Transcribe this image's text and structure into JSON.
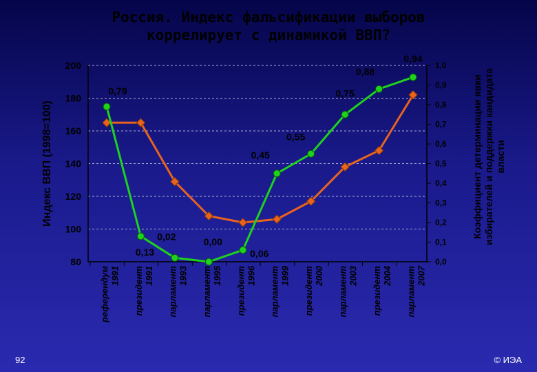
{
  "title": "Россия. Индекс фальсификации выборов\nкоррелирует с динамикой ВВП?",
  "page_number": "92",
  "copyright": "© ИЭА",
  "chart_data": {
    "type": "line",
    "categories": [
      "референдум 1991",
      "президент 1991",
      "парламент 1993",
      "парламент 1995",
      "президент 1996",
      "парламент 1999",
      "президент 2000",
      "парламент 2003",
      "президент 2004",
      "парламент 2007"
    ],
    "category_lines": [
      [
        "референдум",
        "1991"
      ],
      [
        "президент",
        "1991"
      ],
      [
        "парламент",
        "1993"
      ],
      [
        "парламент",
        "1995"
      ],
      [
        "президент",
        "1996"
      ],
      [
        "парламент",
        "1999"
      ],
      [
        "президент",
        "2000"
      ],
      [
        "парламент",
        "2003"
      ],
      [
        "президент",
        "2004"
      ],
      [
        "парламент",
        "2007"
      ]
    ],
    "ylabel": "Индекс ВВП (1998=100)",
    "ylim": [
      80,
      200
    ],
    "yticks": [
      "80",
      "100",
      "120",
      "140",
      "160",
      "180",
      "200"
    ],
    "y2label_lines": [
      "Коэффициент детерминации явки",
      "избирателей и поддержки кандидата",
      "власти"
    ],
    "y2lim": [
      0,
      1
    ],
    "y2ticks": [
      "0,0",
      "0,1",
      "0,2",
      "0,3",
      "0,4",
      "0,5",
      "0,6",
      "0,7",
      "0,8",
      "0,9",
      "1,0"
    ],
    "grid": true,
    "series": [
      {
        "axis": "left",
        "color": "#e8641e",
        "marker": "diamond",
        "values": [
          165,
          165,
          129,
          108,
          104,
          106,
          117,
          138,
          148,
          182
        ]
      },
      {
        "axis": "right",
        "color": "#1ed21e",
        "marker": "circle",
        "values": [
          0.79,
          0.13,
          0.02,
          0.0,
          0.06,
          0.45,
          0.55,
          0.75,
          0.88,
          0.94
        ],
        "labels": [
          "0,79",
          "0,13",
          "0,02",
          "0,00",
          "0,06",
          "0,45",
          "0,55",
          "0,75",
          "0,88",
          "0,94"
        ]
      }
    ]
  }
}
